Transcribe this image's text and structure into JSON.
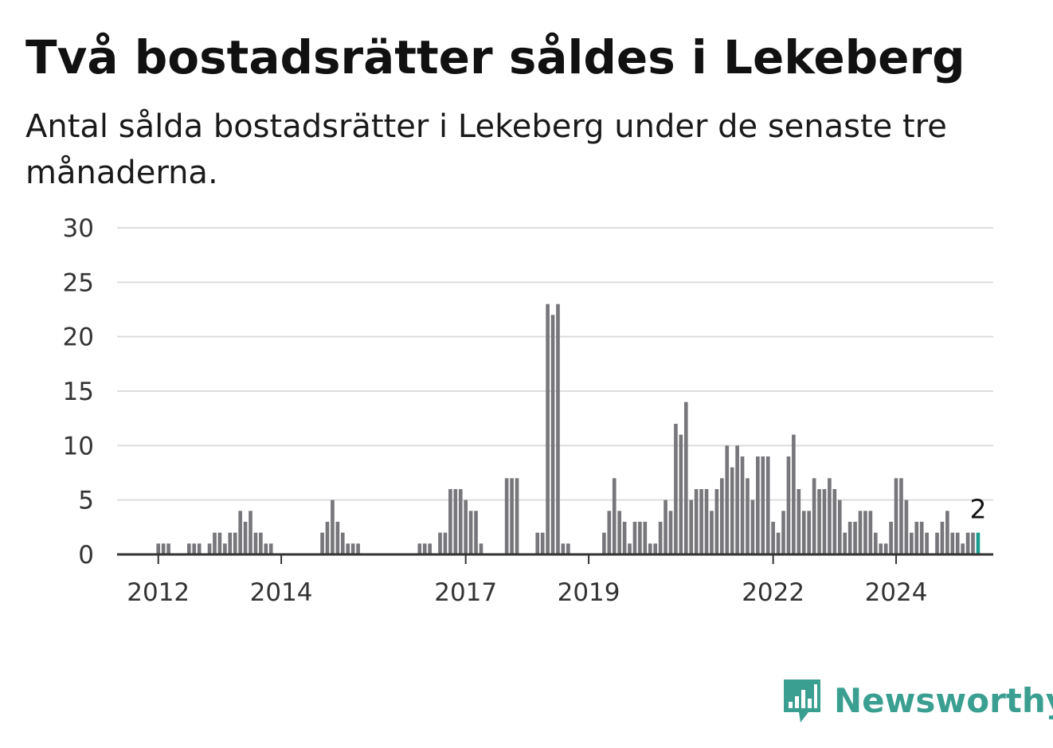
{
  "header": {
    "title": "Två bostadsrätter såldes i Lekeberg",
    "subtitle": "Antal sålda bostadsrätter i Lekeberg under de senaste tre månaderna."
  },
  "brand": {
    "name": "Newsworthy",
    "color": "#3a9f91",
    "icon": "newsworthy-logo-icon"
  },
  "colors": {
    "bar": "#76767b",
    "highlight": "#1a9c8f",
    "grid": "#dddddd",
    "axis": "#333333"
  },
  "chart_data": {
    "type": "bar",
    "title": "Två bostadsrätter såldes i Lekeberg",
    "subtitle": "Antal sålda bostadsrätter i Lekeberg under de senaste tre månaderna.",
    "xlabel": "",
    "ylabel": "",
    "ylim": [
      0,
      30
    ],
    "yticks": [
      0,
      5,
      10,
      15,
      20,
      25,
      30
    ],
    "xlim": [
      2011.33,
      2025.58
    ],
    "xticks": [
      {
        "label": "2012",
        "x": 2012.0
      },
      {
        "label": "2014",
        "x": 2014.0
      },
      {
        "label": "2017",
        "x": 2017.0
      },
      {
        "label": "2019",
        "x": 2019.0
      },
      {
        "label": "2022",
        "x": 2022.0
      },
      {
        "label": "2024",
        "x": 2024.0
      }
    ],
    "grid": true,
    "legend": "none",
    "period": "monthly, rolling three-month total",
    "start": "2011-05",
    "values": [
      0,
      0,
      0,
      0,
      0,
      0,
      0,
      0,
      1,
      1,
      1,
      0,
      0,
      0,
      1,
      1,
      1,
      0,
      1,
      2,
      2,
      1,
      2,
      2,
      4,
      3,
      4,
      2,
      2,
      1,
      1,
      0,
      0,
      0,
      0,
      0,
      0,
      0,
      0,
      0,
      2,
      3,
      5,
      3,
      2,
      1,
      1,
      1,
      0,
      0,
      0,
      0,
      0,
      0,
      0,
      0,
      0,
      0,
      0,
      1,
      1,
      1,
      0,
      2,
      2,
      6,
      6,
      6,
      5,
      4,
      4,
      1,
      0,
      0,
      0,
      0,
      7,
      7,
      7,
      0,
      0,
      0,
      2,
      2,
      23,
      22,
      23,
      1,
      1,
      0,
      0,
      0,
      0,
      0,
      0,
      2,
      4,
      7,
      4,
      3,
      1,
      3,
      3,
      3,
      1,
      1,
      3,
      5,
      4,
      12,
      11,
      14,
      5,
      6,
      6,
      6,
      4,
      6,
      7,
      10,
      8,
      10,
      9,
      7,
      5,
      9,
      9,
      9,
      3,
      2,
      4,
      9,
      11,
      6,
      4,
      4,
      7,
      6,
      6,
      7,
      6,
      5,
      2,
      3,
      3,
      4,
      4,
      4,
      2,
      1,
      1,
      3,
      7,
      7,
      5,
      2,
      3,
      3,
      2,
      0,
      2,
      3,
      4,
      2,
      2,
      1,
      2,
      2,
      2
    ],
    "annotation": {
      "text": "2",
      "value": 2,
      "target": "last"
    }
  }
}
